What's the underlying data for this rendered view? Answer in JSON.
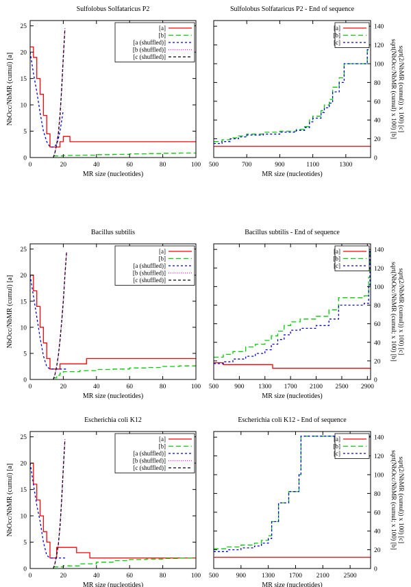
{
  "chart_data": [
    {
      "type": "line",
      "title": "Sulfolobus Solfataricus P2",
      "xlabel": "MR size (nucleotides)",
      "ylabel": "NbOcc/NbMR (cumul) [a]",
      "xlim": [
        0,
        100
      ],
      "ylim": [
        0,
        26
      ],
      "xticks": [
        0,
        20,
        40,
        60,
        80,
        100
      ],
      "yticks": [
        0,
        5,
        10,
        15,
        20,
        25
      ],
      "legend_position": "top-right",
      "series": [
        {
          "name": "[a]",
          "color": "#ff0000",
          "dash": "",
          "step": true,
          "x": [
            0,
            2,
            4,
            6,
            8,
            10,
            12,
            14,
            16,
            18,
            20,
            22,
            24,
            26,
            100
          ],
          "y": [
            21,
            19,
            15,
            12,
            8,
            4.5,
            2,
            2,
            2,
            3,
            4,
            4,
            3,
            3,
            3
          ]
        },
        {
          "name": "[b]",
          "color": "#00cc00",
          "dash": "7,4",
          "step": true,
          "x": [
            14,
            20,
            30,
            40,
            50,
            60,
            70,
            80,
            90,
            100
          ],
          "y": [
            0.3,
            0.4,
            0.45,
            0.55,
            0.6,
            0.7,
            0.75,
            0.8,
            0.85,
            0.9
          ]
        },
        {
          "name": "[a (shuffled)]",
          "color": "#0000dd",
          "dash": "3,3",
          "step": false,
          "x": [
            0,
            2,
            4,
            6,
            8,
            10,
            12,
            14,
            16,
            17,
            18,
            19,
            20
          ],
          "y": [
            20,
            16,
            12.5,
            8.5,
            5,
            3,
            2,
            2,
            2.5,
            3.5,
            5,
            7,
            9
          ]
        },
        {
          "name": "[b (shuffled)]",
          "color": "#ff00ff",
          "dash": "1,2",
          "step": false,
          "x": [
            14,
            15,
            16,
            17,
            18,
            19,
            20,
            21
          ],
          "y": [
            0,
            1,
            2.5,
            4.5,
            8,
            13,
            19,
            24.5
          ]
        },
        {
          "name": "[c (shuffled)]",
          "color": "#000000",
          "dash": "4,3",
          "step": false,
          "x": [
            14,
            15,
            16,
            17,
            18,
            19,
            20,
            21
          ],
          "y": [
            0,
            1,
            2.5,
            4.5,
            8,
            13,
            19,
            24.5
          ]
        }
      ]
    },
    {
      "type": "line",
      "title": "Sulfolobus Solfataricus P2 - End of sequence",
      "xlabel": "MR size (nucleotides)",
      "ylabel": "sqrt(NbOcc/NbMR (cumul) x 100) [b]\nsqrt(2/NbMR (cumul)) x 100) [c]",
      "xlim": [
        500,
        1450
      ],
      "ylim": [
        0,
        146
      ],
      "xticks": [
        500,
        700,
        900,
        1100,
        1300
      ],
      "yticks": [
        0,
        20,
        40,
        60,
        80,
        100,
        120,
        140
      ],
      "legend_position": "top-right",
      "series": [
        {
          "name": "[a]",
          "color": "#ff0000",
          "dash": "",
          "step": true,
          "x": [
            500,
            1450
          ],
          "y": [
            12,
            12
          ]
        },
        {
          "name": "[b]",
          "color": "#00cc00",
          "dash": "7,4",
          "step": true,
          "x": [
            500,
            550,
            600,
            650,
            700,
            800,
            900,
            1000,
            1050,
            1080,
            1100,
            1150,
            1170,
            1200,
            1220,
            1260,
            1290,
            1350,
            1420,
            1430,
            1440
          ],
          "y": [
            17,
            19,
            21,
            23,
            25,
            27,
            28,
            30,
            33,
            40,
            44,
            50,
            56,
            62,
            75,
            85,
            100,
            100,
            100,
            115,
            140
          ]
        },
        {
          "name": "[c]",
          "color": "#0000dd",
          "dash": "3,3",
          "step": true,
          "x": [
            500,
            550,
            600,
            650,
            700,
            800,
            900,
            1000,
            1050,
            1080,
            1100,
            1150,
            1170,
            1200,
            1220,
            1260,
            1290,
            1350,
            1420,
            1430,
            1440
          ],
          "y": [
            15,
            17,
            20,
            22,
            24,
            25,
            27,
            29,
            32,
            38,
            42,
            48,
            53,
            58,
            70,
            80,
            100,
            100,
            100,
            115,
            140
          ]
        }
      ]
    },
    {
      "type": "line",
      "title": "Bacillus subtilis",
      "xlabel": "MR size (nucleotides)",
      "ylabel": "NbOcc/NbMR (cumul) [a]",
      "xlim": [
        0,
        100
      ],
      "ylim": [
        0,
        26
      ],
      "xticks": [
        0,
        20,
        40,
        60,
        80,
        100
      ],
      "yticks": [
        0,
        5,
        10,
        15,
        20,
        25
      ],
      "legend_position": "top-right",
      "series": [
        {
          "name": "[a]",
          "color": "#ff0000",
          "dash": "",
          "step": true,
          "x": [
            0,
            2,
            4,
            6,
            8,
            10,
            12,
            14,
            16,
            18,
            20,
            34,
            100
          ],
          "y": [
            20,
            17,
            14,
            10,
            7,
            4,
            2,
            2,
            2,
            3,
            3,
            4,
            4
          ]
        },
        {
          "name": "[b]",
          "color": "#00cc00",
          "dash": "7,4",
          "step": true,
          "x": [
            14,
            16,
            18,
            20,
            30,
            40,
            50,
            60,
            70,
            80,
            90,
            100
          ],
          "y": [
            0.3,
            0.8,
            1.2,
            1.5,
            1.7,
            1.9,
            2.0,
            2.2,
            2.3,
            2.5,
            2.6,
            2.8
          ]
        },
        {
          "name": "[a (shuffled)]",
          "color": "#0000dd",
          "dash": "3,3",
          "step": false,
          "x": [
            0,
            2,
            4,
            6,
            8,
            10,
            12,
            14,
            16,
            18,
            20,
            22
          ],
          "y": [
            20,
            16,
            12,
            8,
            4.5,
            2.5,
            2,
            2,
            2,
            2,
            2,
            2
          ]
        },
        {
          "name": "[b (shuffled)]",
          "color": "#ff00ff",
          "dash": "1,2",
          "step": false,
          "x": [
            14,
            15,
            16,
            17,
            18,
            19,
            20,
            21,
            22
          ],
          "y": [
            0,
            1,
            2.5,
            4.5,
            7.5,
            11,
            15,
            20,
            24.5
          ]
        },
        {
          "name": "[c (shuffled)]",
          "color": "#000000",
          "dash": "4,3",
          "step": false,
          "x": [
            14,
            15,
            16,
            17,
            18,
            19,
            20,
            21,
            22
          ],
          "y": [
            0,
            1,
            2.5,
            4.5,
            7.5,
            11,
            15,
            20,
            24.5
          ]
        }
      ]
    },
    {
      "type": "line",
      "title": "Bacillus subtilis - End of sequence",
      "xlabel": "MR size (nucleotides)",
      "ylabel": "sqrt(NbOcc/NbMR (cumul; x 100) [b]\nsqrt(2/NbMR (cumul)) x 100) [c]",
      "xlim": [
        500,
        2950
      ],
      "ylim": [
        0,
        146
      ],
      "xticks": [
        500,
        900,
        1300,
        1700,
        2100,
        2500,
        2900
      ],
      "yticks": [
        0,
        20,
        40,
        60,
        80,
        100,
        120,
        140
      ],
      "legend_position": "top-right",
      "series": [
        {
          "name": "[a]",
          "color": "#ff0000",
          "dash": "",
          "step": true,
          "x": [
            500,
            650,
            1420,
            2950
          ],
          "y": [
            18,
            16,
            12,
            12
          ]
        },
        {
          "name": "[b]",
          "color": "#00cc00",
          "dash": "7,4",
          "step": true,
          "x": [
            500,
            650,
            800,
            1000,
            1150,
            1300,
            1400,
            1500,
            1600,
            1700,
            1850,
            2100,
            2300,
            2450,
            2850,
            2920,
            2940
          ],
          "y": [
            24,
            27,
            30,
            35,
            38,
            42,
            47,
            52,
            58,
            62,
            65,
            68,
            75,
            88,
            90,
            110,
            140
          ]
        },
        {
          "name": "[c]",
          "color": "#0000dd",
          "dash": "3,3",
          "step": true,
          "x": [
            500,
            650,
            800,
            1000,
            1150,
            1300,
            1400,
            1500,
            1600,
            1700,
            1850,
            2100,
            2300,
            2450,
            2850,
            2920,
            2940
          ],
          "y": [
            17,
            19,
            22,
            25,
            28,
            32,
            38,
            43,
            48,
            53,
            55,
            58,
            65,
            80,
            82,
            100,
            140
          ]
        }
      ]
    },
    {
      "type": "line",
      "title": "Escherichia coli K12",
      "xlabel": "MR size (nucleotides)",
      "ylabel": "NbOcc/NbMR (cumul) [a]",
      "xlim": [
        0,
        100
      ],
      "ylim": [
        0,
        26
      ],
      "xticks": [
        0,
        20,
        40,
        60,
        80,
        100
      ],
      "yticks": [
        0,
        5,
        10,
        15,
        20,
        25
      ],
      "legend_position": "top-right",
      "series": [
        {
          "name": "[a]",
          "color": "#ff0000",
          "dash": "",
          "step": true,
          "x": [
            0,
            2,
            4,
            6,
            8,
            10,
            12,
            14,
            16,
            18,
            28,
            36,
            100
          ],
          "y": [
            20,
            16,
            13,
            10,
            7,
            5,
            2,
            2,
            4,
            4,
            3,
            2,
            2
          ]
        },
        {
          "name": "[b]",
          "color": "#00cc00",
          "dash": "7,4",
          "step": true,
          "x": [
            14,
            20,
            30,
            40,
            50,
            60,
            70,
            80,
            90,
            100
          ],
          "y": [
            0.3,
            0.5,
            0.9,
            1.2,
            1.5,
            1.7,
            1.8,
            1.9,
            2.0,
            2.1
          ]
        },
        {
          "name": "[a (shuffled)]",
          "color": "#0000dd",
          "dash": "3,3",
          "step": false,
          "x": [
            0,
            2,
            4,
            6,
            8,
            10,
            12,
            14,
            16,
            18,
            20,
            22
          ],
          "y": [
            20,
            16,
            12,
            9,
            5,
            2.5,
            2,
            2,
            2,
            2,
            2,
            2
          ]
        },
        {
          "name": "[b (shuffled)]",
          "color": "#ff00ff",
          "dash": "1,2",
          "step": false,
          "x": [
            14,
            15,
            16,
            17,
            18,
            19,
            20,
            21
          ],
          "y": [
            0,
            1,
            2.5,
            4.5,
            8,
            13,
            19,
            24.5
          ]
        },
        {
          "name": "[c (shuffled)]",
          "color": "#000000",
          "dash": "4,3",
          "step": false,
          "x": [
            14,
            15,
            16,
            17,
            18,
            19,
            20,
            21
          ],
          "y": [
            0,
            1,
            2.5,
            4.5,
            8,
            13,
            19,
            24.5
          ]
        }
      ]
    },
    {
      "type": "line",
      "title": "Escherichia coli K12 - End of sequence",
      "xlabel": "MR size (nucleotides)",
      "ylabel": "sqrt(NbOcc/NbMR (cumul; x 100) [b]\nsqrt(2/NbMR (cumul)) x 100) [c]",
      "xlim": [
        500,
        2800
      ],
      "ylim": [
        0,
        146
      ],
      "xticks": [
        500,
        900,
        1300,
        1700,
        2100,
        2500
      ],
      "yticks": [
        0,
        20,
        40,
        60,
        80,
        100,
        120,
        140
      ],
      "legend_position": "top-right",
      "series": [
        {
          "name": "[a]",
          "color": "#ff0000",
          "dash": "",
          "step": true,
          "x": [
            500,
            2800
          ],
          "y": [
            12,
            12
          ]
        },
        {
          "name": "[b]",
          "color": "#00cc00",
          "dash": "7,4",
          "step": true,
          "x": [
            500,
            700,
            900,
            1100,
            1200,
            1300,
            1350,
            1450,
            1600,
            1750,
            1780,
            2800
          ],
          "y": [
            21,
            23,
            25,
            27,
            30,
            35,
            50,
            70,
            82,
            100,
            141,
            141
          ]
        },
        {
          "name": "[c]",
          "color": "#0000dd",
          "dash": "3,3",
          "step": true,
          "x": [
            500,
            700,
            900,
            1100,
            1200,
            1300,
            1350,
            1450,
            1600,
            1750,
            1780,
            2800
          ],
          "y": [
            18,
            20,
            22,
            24,
            27,
            32,
            50,
            70,
            82,
            100,
            141,
            141
          ]
        }
      ]
    }
  ]
}
